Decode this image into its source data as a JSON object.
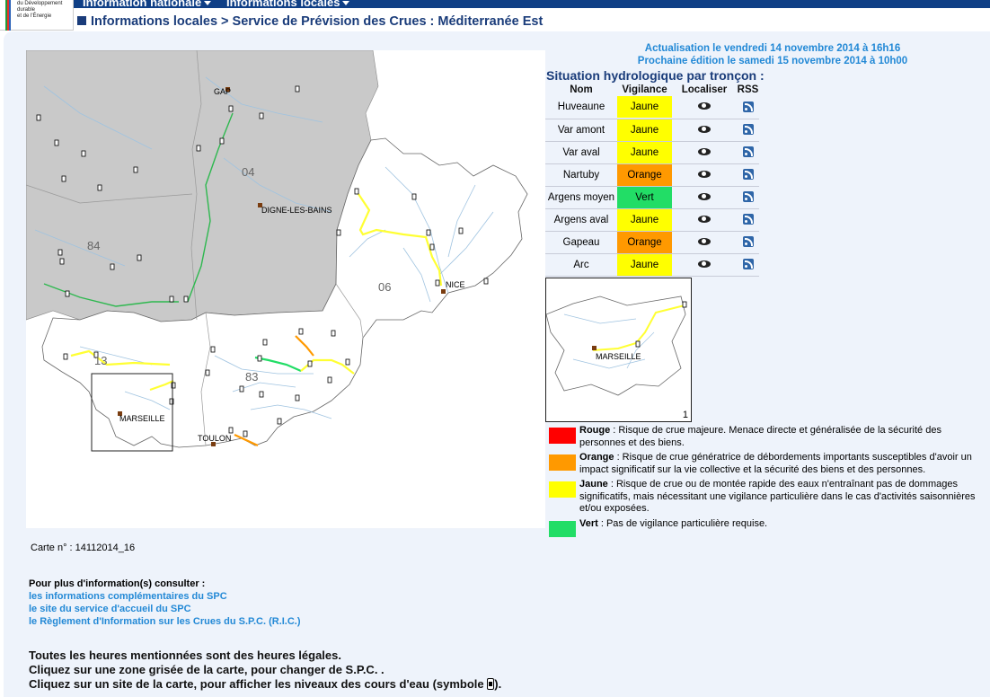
{
  "logo": {
    "lines": [
      "du Développement",
      "durable",
      "et de l'Énergie"
    ]
  },
  "nav": {
    "item1": "Information nationale",
    "item2": "Informations locales"
  },
  "breadcrumb": "Informations locales > Service de Prévision des Crues : Méditerranée Est",
  "update": {
    "actualisation": "Actualisation le vendredi 14 novembre 2014 à 16h16",
    "prochaine": "Prochaine édition le samedi 15 novembre 2014 à 10h00"
  },
  "situation_title": "Situation hydrologique par tronçon :",
  "table": {
    "headers": {
      "nom": "Nom",
      "vigilance": "Vigilance",
      "localiser": "Localiser",
      "rss": "RSS"
    },
    "rows": [
      {
        "nom": "Huveaune",
        "vigilance": "Jaune",
        "color": "#ffff00"
      },
      {
        "nom": "Var amont",
        "vigilance": "Jaune",
        "color": "#ffff00"
      },
      {
        "nom": "Var aval",
        "vigilance": "Jaune",
        "color": "#ffff00"
      },
      {
        "nom": "Nartuby",
        "vigilance": "Orange",
        "color": "#ff9900"
      },
      {
        "nom": "Argens moyen",
        "vigilance": "Vert",
        "color": "#22dd66"
      },
      {
        "nom": "Argens aval",
        "vigilance": "Jaune",
        "color": "#ffff00"
      },
      {
        "nom": "Gapeau",
        "vigilance": "Orange",
        "color": "#ff9900"
      },
      {
        "nom": "Arc",
        "vigilance": "Jaune",
        "color": "#ffff00"
      }
    ]
  },
  "map": {
    "cities": {
      "gap": "GAP",
      "digne": "DIGNE-LES-BAINS",
      "nice": "NICE",
      "marseille": "MARSEILLE",
      "toulon": "TOULON"
    },
    "departments": {
      "d04": "04",
      "d84": "84",
      "d06": "06",
      "d13": "13",
      "d83": "83"
    }
  },
  "inset": {
    "city": "MARSEILLE",
    "number": "1"
  },
  "legend": [
    {
      "label": "Rouge",
      "text": " : Risque de crue majeure. Menace directe et généralisée de la sécurité des personnes et des biens.",
      "color": "#ff0000"
    },
    {
      "label": "Orange",
      "text": " : Risque de crue génératrice de débordements importants susceptibles d'avoir un impact significatif sur la vie collective et la sécurité des biens et des personnes.",
      "color": "#ff9900"
    },
    {
      "label": "Jaune",
      "text": " : Risque de crue ou de montée rapide des eaux n'entraînant pas de dommages significatifs, mais nécessitant une vigilance particulière dans le cas d'activités saisonnières et/ou exposées.",
      "color": "#ffff00"
    },
    {
      "label": "Vert",
      "text": " : Pas de vigilance particulière requise.",
      "color": "#22dd66"
    }
  ],
  "carte": "Carte n° : 14112014_16",
  "more": {
    "title": "Pour plus d'information(s) consulter :",
    "links": [
      "les informations complémentaires du SPC",
      "le site du service d'accueil du SPC",
      "le Règlement d'Information sur les Crues du S.P.C. (R.I.C.)"
    ]
  },
  "notes": [
    "Toutes les heures mentionnées sont des heures légales.",
    "Cliquez sur une zone grisée de la carte, pour changer de S.P.C. .",
    "Cliquez sur un site de la carte, pour afficher les niveaux des cours d'eau (symbole ",
    ")."
  ]
}
